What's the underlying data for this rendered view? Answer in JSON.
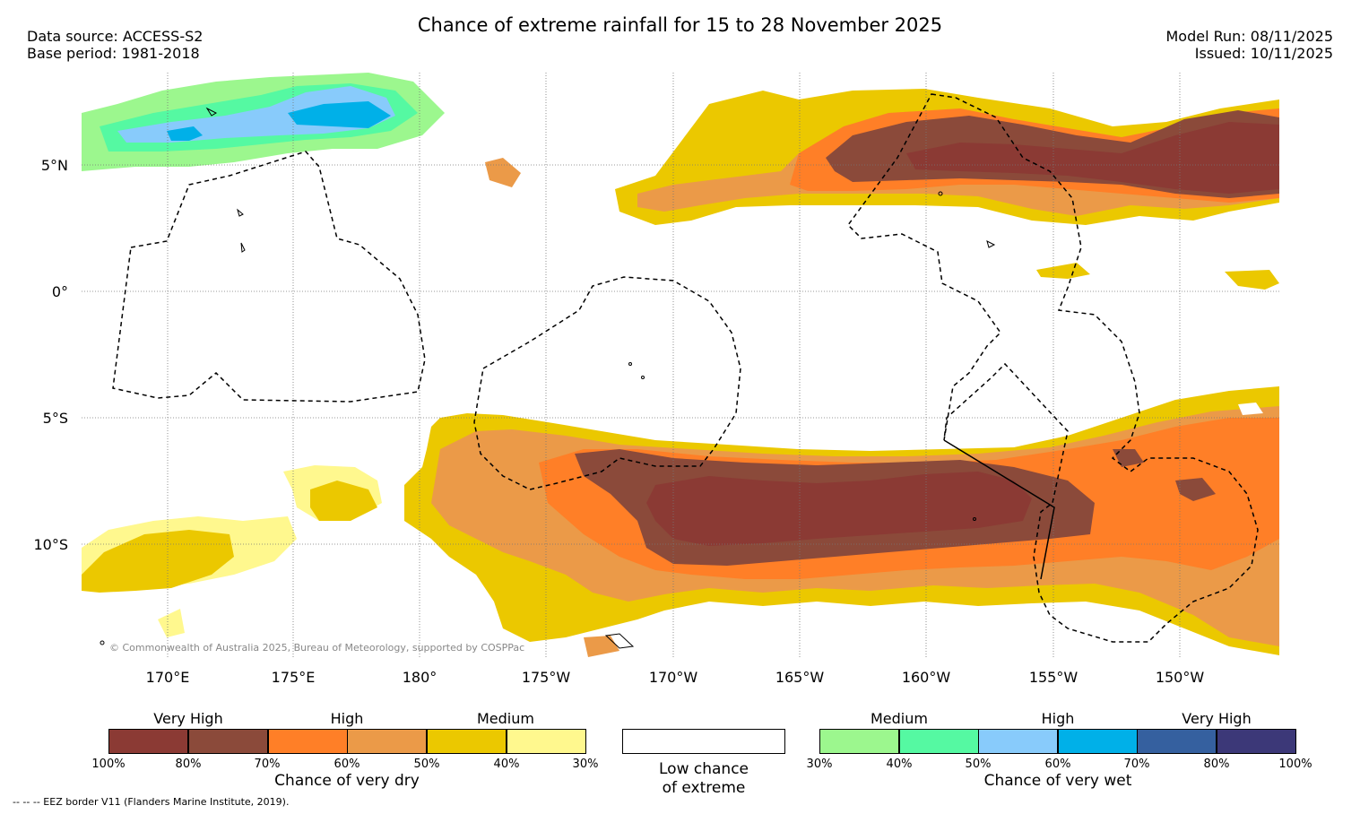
{
  "header": {
    "title": "Chance of extreme rainfall for 15 to 28 November 2025",
    "data_source": "Data source: ACCESS-S2",
    "base_period": "Base period: 1981-2018",
    "model_run": "Model Run: 08/11/2025",
    "issued": "Issued: 10/11/2025"
  },
  "map": {
    "lat_labels": [
      "5°N",
      "0°",
      "5°S",
      "10°S"
    ],
    "lon_labels": [
      "170°E",
      "175°E",
      "180°",
      "175°W",
      "170°W",
      "165°W",
      "160°W",
      "155°W",
      "150°W"
    ],
    "copyright": "© Commonwealth of Australia 2025, Bureau of Meteorology, supported by COSPPac"
  },
  "legend_dry": {
    "levels": [
      "Very High",
      "High",
      "Medium"
    ],
    "colors": [
      "#8b3a34",
      "#8b4a3a",
      "#ff7f27",
      "#eb9a48",
      "#ebc800",
      "#fff88e"
    ],
    "ticks": [
      "100%",
      "80%",
      "70%",
      "60%",
      "50%",
      "40%",
      "30%"
    ],
    "caption": "Chance of very dry"
  },
  "legend_low": {
    "caption_line1": "Low chance",
    "caption_line2": "of extreme"
  },
  "legend_wet": {
    "levels": [
      "Medium",
      "High",
      "Very High"
    ],
    "colors": [
      "#9cf78e",
      "#55f9a2",
      "#88cbfb",
      "#00b0e8",
      "#35609f",
      "#3c3878"
    ],
    "ticks": [
      "30%",
      "40%",
      "50%",
      "60%",
      "70%",
      "80%",
      "100%"
    ],
    "caption": "Chance of very wet"
  },
  "footnote": "-- -- -- EEZ border V11 (Flanders Marine Institute, 2019)."
}
